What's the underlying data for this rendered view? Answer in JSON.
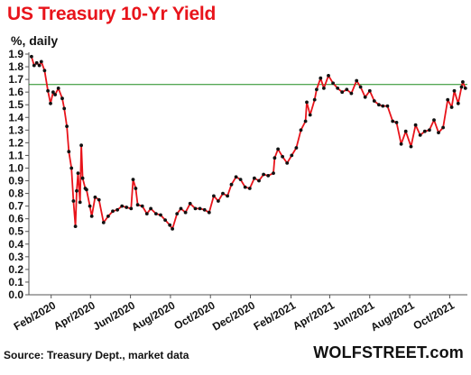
{
  "chart_data": {
    "type": "line",
    "title": "US Treasury 10-Yr Yield",
    "unit_label": "%, daily",
    "source": "Source: Treasury Dept., market data",
    "brand": "WOLFSTREET.com",
    "ylim": [
      0.0,
      1.9
    ],
    "yticks": [
      "0.0",
      "0.1",
      "0.2",
      "0.3",
      "0.4",
      "0.5",
      "0.6",
      "0.7",
      "0.8",
      "0.9",
      "1.0",
      "1.1",
      "1.2",
      "1.3",
      "1.4",
      "1.5",
      "1.6",
      "1.7",
      "1.8",
      "1.9"
    ],
    "xtick_labels": [
      "Feb/2020",
      "Apr/2020",
      "Jun/2020",
      "Aug/2020",
      "Oct/2020",
      "Dec/2020",
      "Feb/2021",
      "Apr/2021",
      "Jun/2021",
      "Aug/2021",
      "Oct/2021"
    ],
    "grid": false,
    "line_color": "#e8141b",
    "marker_color": "#111111",
    "reference_line": {
      "value": 1.66,
      "color": "#1b8a1b"
    },
    "series": [
      {
        "points": [
          [
            "2020-01-02",
            1.88
          ],
          [
            "2020-01-06",
            1.81
          ],
          [
            "2020-01-10",
            1.83
          ],
          [
            "2020-01-14",
            1.81
          ],
          [
            "2020-01-17",
            1.84
          ],
          [
            "2020-01-22",
            1.77
          ],
          [
            "2020-01-27",
            1.61
          ],
          [
            "2020-01-31",
            1.51
          ],
          [
            "2020-02-04",
            1.6
          ],
          [
            "2020-02-07",
            1.58
          ],
          [
            "2020-02-12",
            1.63
          ],
          [
            "2020-02-18",
            1.55
          ],
          [
            "2020-02-21",
            1.47
          ],
          [
            "2020-02-25",
            1.33
          ],
          [
            "2020-02-28",
            1.13
          ],
          [
            "2020-03-03",
            1.0
          ],
          [
            "2020-03-06",
            0.74
          ],
          [
            "2020-03-09",
            0.54
          ],
          [
            "2020-03-11",
            0.82
          ],
          [
            "2020-03-13",
            0.96
          ],
          [
            "2020-03-16",
            0.73
          ],
          [
            "2020-03-18",
            1.18
          ],
          [
            "2020-03-20",
            0.92
          ],
          [
            "2020-03-24",
            0.84
          ],
          [
            "2020-03-26",
            0.83
          ],
          [
            "2020-03-31",
            0.7
          ],
          [
            "2020-04-03",
            0.62
          ],
          [
            "2020-04-08",
            0.77
          ],
          [
            "2020-04-14",
            0.75
          ],
          [
            "2020-04-21",
            0.57
          ],
          [
            "2020-04-28",
            0.62
          ],
          [
            "2020-05-05",
            0.66
          ],
          [
            "2020-05-12",
            0.67
          ],
          [
            "2020-05-19",
            0.7
          ],
          [
            "2020-05-26",
            0.69
          ],
          [
            "2020-06-02",
            0.68
          ],
          [
            "2020-06-05",
            0.91
          ],
          [
            "2020-06-09",
            0.84
          ],
          [
            "2020-06-12",
            0.71
          ],
          [
            "2020-06-19",
            0.7
          ],
          [
            "2020-06-26",
            0.64
          ],
          [
            "2020-07-02",
            0.68
          ],
          [
            "2020-07-10",
            0.64
          ],
          [
            "2020-07-17",
            0.63
          ],
          [
            "2020-07-24",
            0.59
          ],
          [
            "2020-07-31",
            0.55
          ],
          [
            "2020-08-04",
            0.52
          ],
          [
            "2020-08-11",
            0.64
          ],
          [
            "2020-08-17",
            0.68
          ],
          [
            "2020-08-24",
            0.65
          ],
          [
            "2020-08-31",
            0.72
          ],
          [
            "2020-09-08",
            0.68
          ],
          [
            "2020-09-15",
            0.68
          ],
          [
            "2020-09-22",
            0.67
          ],
          [
            "2020-09-29",
            0.65
          ],
          [
            "2020-10-06",
            0.78
          ],
          [
            "2020-10-13",
            0.74
          ],
          [
            "2020-10-20",
            0.8
          ],
          [
            "2020-10-27",
            0.78
          ],
          [
            "2020-11-02",
            0.87
          ],
          [
            "2020-11-09",
            0.93
          ],
          [
            "2020-11-16",
            0.91
          ],
          [
            "2020-11-23",
            0.85
          ],
          [
            "2020-11-30",
            0.84
          ],
          [
            "2020-12-07",
            0.92
          ],
          [
            "2020-12-14",
            0.9
          ],
          [
            "2020-12-21",
            0.95
          ],
          [
            "2020-12-28",
            0.94
          ],
          [
            "2021-01-05",
            0.96
          ],
          [
            "2021-01-07",
            1.08
          ],
          [
            "2021-01-12",
            1.15
          ],
          [
            "2021-01-19",
            1.09
          ],
          [
            "2021-01-26",
            1.04
          ],
          [
            "2021-02-02",
            1.1
          ],
          [
            "2021-02-09",
            1.16
          ],
          [
            "2021-02-16",
            1.3
          ],
          [
            "2021-02-23",
            1.37
          ],
          [
            "2021-02-25",
            1.52
          ],
          [
            "2021-03-02",
            1.42
          ],
          [
            "2021-03-09",
            1.54
          ],
          [
            "2021-03-12",
            1.62
          ],
          [
            "2021-03-18",
            1.71
          ],
          [
            "2021-03-23",
            1.63
          ],
          [
            "2021-03-30",
            1.73
          ],
          [
            "2021-04-06",
            1.67
          ],
          [
            "2021-04-13",
            1.63
          ],
          [
            "2021-04-20",
            1.6
          ],
          [
            "2021-04-27",
            1.62
          ],
          [
            "2021-05-04",
            1.59
          ],
          [
            "2021-05-12",
            1.69
          ],
          [
            "2021-05-18",
            1.64
          ],
          [
            "2021-05-25",
            1.56
          ],
          [
            "2021-06-01",
            1.61
          ],
          [
            "2021-06-08",
            1.53
          ],
          [
            "2021-06-15",
            1.5
          ],
          [
            "2021-06-21",
            1.49
          ],
          [
            "2021-06-28",
            1.49
          ],
          [
            "2021-07-06",
            1.37
          ],
          [
            "2021-07-12",
            1.36
          ],
          [
            "2021-07-19",
            1.19
          ],
          [
            "2021-07-26",
            1.29
          ],
          [
            "2021-08-03",
            1.17
          ],
          [
            "2021-08-10",
            1.34
          ],
          [
            "2021-08-17",
            1.26
          ],
          [
            "2021-08-24",
            1.29
          ],
          [
            "2021-08-31",
            1.3
          ],
          [
            "2021-09-07",
            1.38
          ],
          [
            "2021-09-14",
            1.28
          ],
          [
            "2021-09-21",
            1.32
          ],
          [
            "2021-09-28",
            1.54
          ],
          [
            "2021-10-04",
            1.48
          ],
          [
            "2021-10-08",
            1.61
          ],
          [
            "2021-10-14",
            1.51
          ],
          [
            "2021-10-19",
            1.64
          ],
          [
            "2021-10-21",
            1.68
          ],
          [
            "2021-10-25",
            1.63
          ]
        ]
      }
    ]
  }
}
